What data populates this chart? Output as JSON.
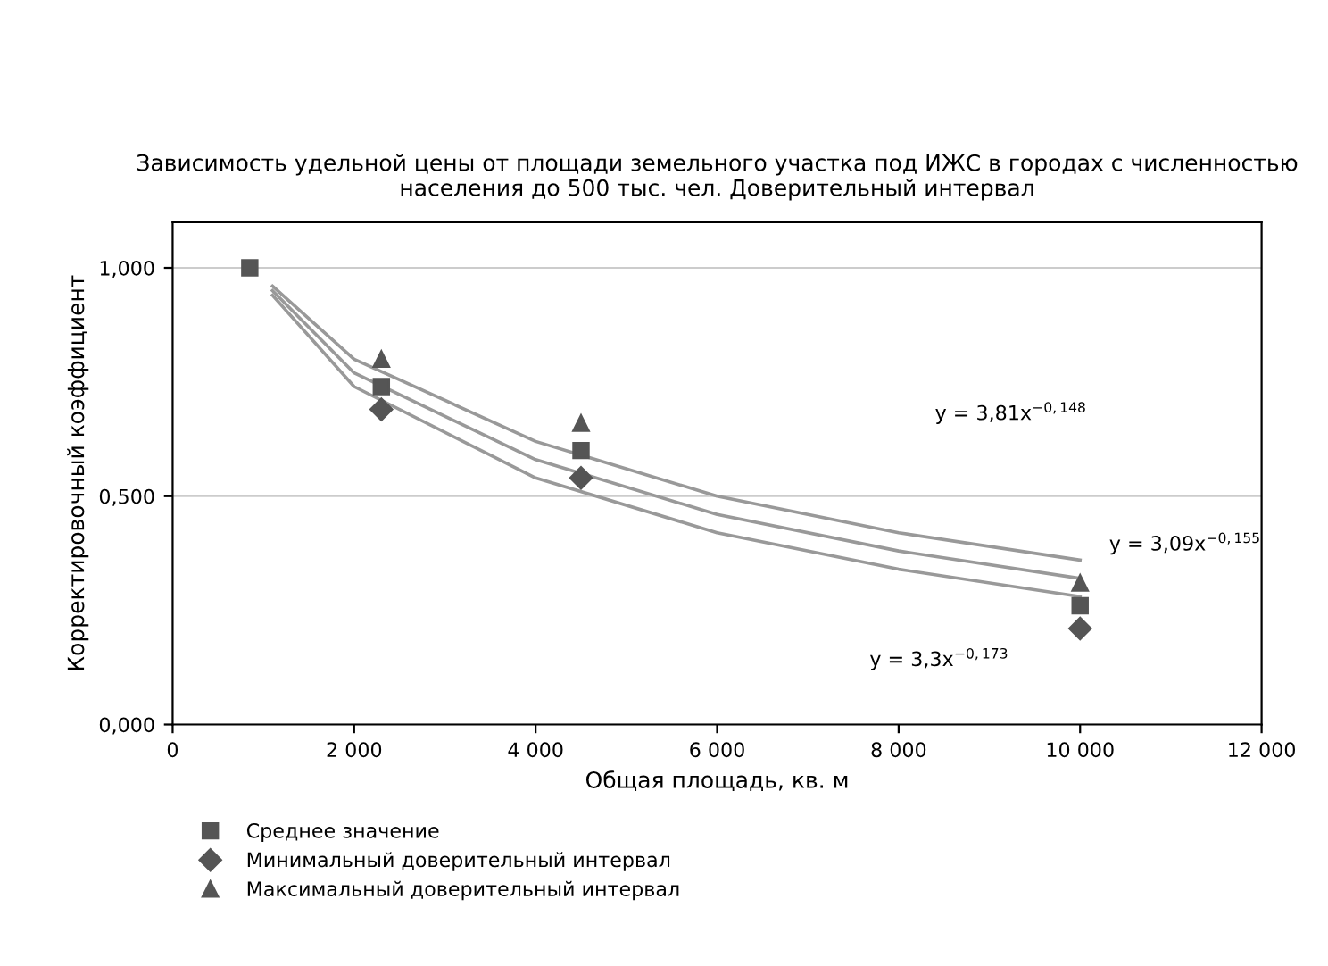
{
  "chart_data": {
    "type": "scatter",
    "title": "Зависимость удельной цены от площади земельного участка под ИЖС в городах с численностью населения до 500 тыс. чел. Доверительный интервал",
    "xlabel": "Общая площадь, кв. м",
    "ylabel": "Корректировочный коэффициент",
    "xlim": [
      0,
      12000
    ],
    "xticks": [
      0,
      {
        "value": 2000,
        "label": "2 000"
      },
      {
        "value": 4000,
        "label": "4 000"
      },
      {
        "value": 6000,
        "label": "6 000"
      },
      {
        "value": 8000,
        "label": "8 000"
      },
      {
        "value": 10000,
        "label": "10 000"
      },
      {
        "value": 12000,
        "label": "12 000"
      }
    ],
    "ylim": [
      0,
      1.1
    ],
    "yticks": [
      {
        "value": 0,
        "label": "0,000"
      },
      {
        "value": 0.5,
        "label": "0,500"
      },
      {
        "value": 1,
        "label": "1,000"
      }
    ],
    "grid": "y",
    "legend": "bottom left",
    "series": [
      {
        "name": "Среднее значение",
        "color": "#555555",
        "marker": "square",
        "x": [
          850,
          2300,
          4500,
          10000
        ],
        "values": [
          1.0,
          0.74,
          0.6,
          0.26
        ]
      },
      {
        "name": "Минимальный доверительный интервал",
        "color": "#555555",
        "marker": "diamond",
        "x": [
          2300,
          4500,
          10000
        ],
        "values": [
          0.69,
          0.54,
          0.21
        ]
      },
      {
        "name": "Максимальный доверительный интервал",
        "color": "#555555",
        "marker": "triangle",
        "x": [
          2300,
          4500,
          10000
        ],
        "values": [
          0.8,
          0.66,
          0.31
        ]
      },
      {
        "type": "line",
        "color": "#999999",
        "marker": "none",
        "x": [
          1100,
          2000,
          4000,
          6000,
          8000,
          10000
        ],
        "values": [
          0.96,
          0.8,
          0.62,
          0.5,
          0.42,
          0.36
        ]
      },
      {
        "type": "line",
        "color": "#999999",
        "marker": "none",
        "x": [
          1100,
          2000,
          4000,
          6000,
          8000,
          10000
        ],
        "values": [
          0.95,
          0.77,
          0.58,
          0.46,
          0.38,
          0.32
        ]
      },
      {
        "type": "line",
        "color": "#999999",
        "marker": "none",
        "x": [
          1100,
          2000,
          4000,
          6000,
          8000,
          10000
        ],
        "values": [
          0.94,
          0.74,
          0.54,
          0.42,
          0.34,
          0.28
        ]
      }
    ],
    "annotations": [
      "y = 3,81x$^{−0,148}$",
      "y = 3,09x$^{−0,155}$",
      "y = 3,3x$^{−0,173}$"
    ]
  }
}
